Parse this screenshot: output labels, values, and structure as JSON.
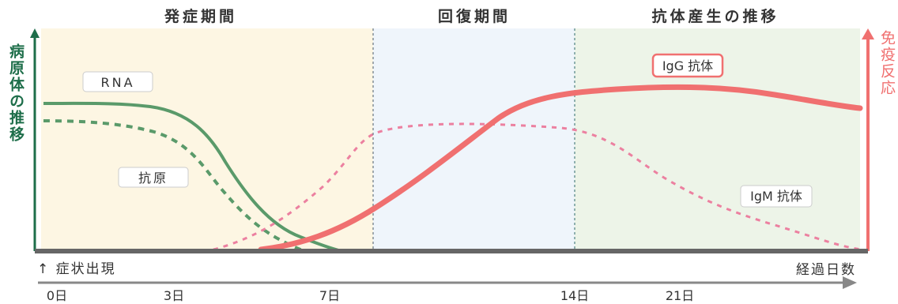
{
  "phases": {
    "onset": "発症期間",
    "recovery": "回復期間",
    "antibody": "抗体産生の推移"
  },
  "axes": {
    "left_label": "病原体の推移",
    "right_label": "免疫反応",
    "symptom_label": "↑ 症状出現",
    "x_label": "経過日数",
    "ticks": [
      "0日",
      "3日",
      "7日",
      "14日",
      "21日"
    ]
  },
  "curve_labels": {
    "rna": "RNA",
    "antigen": "抗原",
    "igg": "IgG 抗体",
    "igm": "IgM 抗体"
  },
  "colors": {
    "pathogen_green": "#5a9a6a",
    "pathogen_axis": "#1e6e4a",
    "antibody_red": "#f07070",
    "igm_pink": "#ec80a0",
    "onset_bg": "#fdf6e3",
    "recovery_bg": "#eff5fb",
    "antibody_bg": "#edf4e8",
    "baseline": "#666666"
  }
}
